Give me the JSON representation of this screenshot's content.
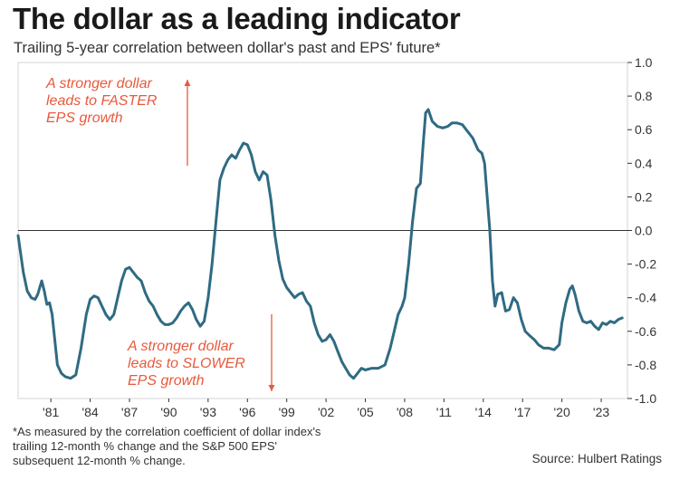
{
  "header": {
    "title": "The dollar as a leading indicator",
    "subtitle": "Trailing 5-year correlation between dollar's past and EPS' future*"
  },
  "footnote": {
    "text": "*As measured by the correlation coefficient of dollar index's trailing 12-month % change and the S&P 500 EPS' subsequent 12-month % change."
  },
  "source": {
    "text": "Source: Hulbert Ratings"
  },
  "colors": {
    "line": "#2f6b82",
    "annotation": "#e8593c",
    "axis": "#333333",
    "plot_border": "#d6d6d6"
  },
  "chart_data": {
    "type": "line",
    "title": "The dollar as a leading indicator",
    "subtitle": "Trailing 5-year correlation between dollar's past and EPS' future*",
    "xlabel": "",
    "ylabel": "",
    "xlim": [
      1978.5,
      2025.0
    ],
    "ylim": [
      -1.0,
      1.0
    ],
    "yticks": [
      1.0,
      0.8,
      0.6,
      0.4,
      0.2,
      0.0,
      -0.2,
      -0.4,
      -0.6,
      -0.8,
      -1.0
    ],
    "ytick_labels": [
      "1.0",
      "0.8",
      "0.6",
      "0.4",
      "0.2",
      "0.0",
      "-0.2",
      "-0.4",
      "-0.6",
      "-0.8",
      "-1.0"
    ],
    "xticks": [
      1981,
      1984,
      1987,
      1990,
      1993,
      1996,
      1999,
      2002,
      2005,
      2008,
      2011,
      2014,
      2017,
      2020,
      2023
    ],
    "xtick_labels": [
      "'81",
      "'84",
      "'87",
      "'90",
      "'93",
      "'96",
      "'99",
      "'02",
      "'05",
      "'08",
      "'11",
      "'14",
      "'17",
      "'20",
      "'23"
    ],
    "zero_line": true,
    "grid": false,
    "annotations": [
      {
        "lines": [
          "A stronger dollar",
          "leads to FASTER",
          "EPS growth"
        ],
        "arrow": "up"
      },
      {
        "lines": [
          "A stronger dollar",
          "leads to SLOWER",
          "EPS growth"
        ],
        "arrow": "down"
      }
    ],
    "series": [
      {
        "name": "Trailing 5-year correlation",
        "points": [
          [
            1978.5,
            -0.03
          ],
          [
            1978.9,
            -0.25
          ],
          [
            1979.2,
            -0.36
          ],
          [
            1979.5,
            -0.4
          ],
          [
            1979.8,
            -0.41
          ],
          [
            1980.0,
            -0.38
          ],
          [
            1980.3,
            -0.3
          ],
          [
            1980.5,
            -0.36
          ],
          [
            1980.7,
            -0.44
          ],
          [
            1980.9,
            -0.43
          ],
          [
            1981.1,
            -0.5
          ],
          [
            1981.3,
            -0.65
          ],
          [
            1981.5,
            -0.8
          ],
          [
            1981.8,
            -0.85
          ],
          [
            1982.1,
            -0.87
          ],
          [
            1982.5,
            -0.88
          ],
          [
            1982.9,
            -0.86
          ],
          [
            1983.3,
            -0.7
          ],
          [
            1983.7,
            -0.5
          ],
          [
            1984.0,
            -0.41
          ],
          [
            1984.3,
            -0.39
          ],
          [
            1984.6,
            -0.4
          ],
          [
            1984.9,
            -0.45
          ],
          [
            1985.2,
            -0.5
          ],
          [
            1985.5,
            -0.53
          ],
          [
            1985.8,
            -0.5
          ],
          [
            1986.1,
            -0.4
          ],
          [
            1986.4,
            -0.3
          ],
          [
            1986.7,
            -0.23
          ],
          [
            1987.0,
            -0.22
          ],
          [
            1987.3,
            -0.25
          ],
          [
            1987.6,
            -0.28
          ],
          [
            1987.9,
            -0.3
          ],
          [
            1988.2,
            -0.37
          ],
          [
            1988.5,
            -0.42
          ],
          [
            1988.8,
            -0.45
          ],
          [
            1989.1,
            -0.5
          ],
          [
            1989.4,
            -0.54
          ],
          [
            1989.7,
            -0.56
          ],
          [
            1990.0,
            -0.56
          ],
          [
            1990.3,
            -0.55
          ],
          [
            1990.6,
            -0.52
          ],
          [
            1990.9,
            -0.48
          ],
          [
            1991.2,
            -0.45
          ],
          [
            1991.5,
            -0.43
          ],
          [
            1991.8,
            -0.47
          ],
          [
            1992.1,
            -0.53
          ],
          [
            1992.4,
            -0.57
          ],
          [
            1992.7,
            -0.54
          ],
          [
            1993.0,
            -0.4
          ],
          [
            1993.3,
            -0.2
          ],
          [
            1993.6,
            0.05
          ],
          [
            1993.9,
            0.3
          ],
          [
            1994.2,
            0.37
          ],
          [
            1994.5,
            0.42
          ],
          [
            1994.8,
            0.45
          ],
          [
            1995.1,
            0.43
          ],
          [
            1995.4,
            0.48
          ],
          [
            1995.7,
            0.52
          ],
          [
            1996.0,
            0.51
          ],
          [
            1996.3,
            0.45
          ],
          [
            1996.6,
            0.35
          ],
          [
            1996.9,
            0.3
          ],
          [
            1997.2,
            0.35
          ],
          [
            1997.5,
            0.33
          ],
          [
            1997.8,
            0.18
          ],
          [
            1998.1,
            -0.03
          ],
          [
            1998.4,
            -0.18
          ],
          [
            1998.7,
            -0.29
          ],
          [
            1999.0,
            -0.34
          ],
          [
            1999.3,
            -0.37
          ],
          [
            1999.6,
            -0.4
          ],
          [
            1999.9,
            -0.38
          ],
          [
            2000.2,
            -0.37
          ],
          [
            2000.5,
            -0.42
          ],
          [
            2000.8,
            -0.45
          ],
          [
            2001.1,
            -0.55
          ],
          [
            2001.4,
            -0.62
          ],
          [
            2001.7,
            -0.66
          ],
          [
            2002.0,
            -0.65
          ],
          [
            2002.3,
            -0.62
          ],
          [
            2002.6,
            -0.66
          ],
          [
            2002.9,
            -0.72
          ],
          [
            2003.2,
            -0.78
          ],
          [
            2003.5,
            -0.82
          ],
          [
            2003.8,
            -0.86
          ],
          [
            2004.1,
            -0.88
          ],
          [
            2004.4,
            -0.85
          ],
          [
            2004.7,
            -0.82
          ],
          [
            2005.0,
            -0.83
          ],
          [
            2005.5,
            -0.82
          ],
          [
            2006.0,
            -0.82
          ],
          [
            2006.5,
            -0.8
          ],
          [
            2006.9,
            -0.7
          ],
          [
            2007.2,
            -0.6
          ],
          [
            2007.5,
            -0.5
          ],
          [
            2007.8,
            -0.45
          ],
          [
            2008.0,
            -0.4
          ],
          [
            2008.3,
            -0.2
          ],
          [
            2008.6,
            0.05
          ],
          [
            2008.9,
            0.25
          ],
          [
            2009.2,
            0.28
          ],
          [
            2009.4,
            0.5
          ],
          [
            2009.6,
            0.7
          ],
          [
            2009.8,
            0.72
          ],
          [
            2010.1,
            0.65
          ],
          [
            2010.5,
            0.62
          ],
          [
            2010.9,
            0.61
          ],
          [
            2011.3,
            0.62
          ],
          [
            2011.6,
            0.64
          ],
          [
            2012.0,
            0.64
          ],
          [
            2012.4,
            0.63
          ],
          [
            2012.8,
            0.59
          ],
          [
            2013.2,
            0.55
          ],
          [
            2013.6,
            0.48
          ],
          [
            2013.9,
            0.46
          ],
          [
            2014.1,
            0.4
          ],
          [
            2014.3,
            0.2
          ],
          [
            2014.5,
            0.0
          ],
          [
            2014.7,
            -0.3
          ],
          [
            2014.9,
            -0.45
          ],
          [
            2015.1,
            -0.38
          ],
          [
            2015.4,
            -0.37
          ],
          [
            2015.7,
            -0.48
          ],
          [
            2016.0,
            -0.47
          ],
          [
            2016.3,
            -0.4
          ],
          [
            2016.6,
            -0.43
          ],
          [
            2016.9,
            -0.53
          ],
          [
            2017.2,
            -0.6
          ],
          [
            2017.6,
            -0.63
          ],
          [
            2017.9,
            -0.65
          ],
          [
            2018.2,
            -0.68
          ],
          [
            2018.6,
            -0.7
          ],
          [
            2019.0,
            -0.7
          ],
          [
            2019.4,
            -0.71
          ],
          [
            2019.8,
            -0.68
          ],
          [
            2020.0,
            -0.55
          ],
          [
            2020.3,
            -0.43
          ],
          [
            2020.6,
            -0.35
          ],
          [
            2020.8,
            -0.33
          ],
          [
            2021.0,
            -0.38
          ],
          [
            2021.3,
            -0.48
          ],
          [
            2021.6,
            -0.54
          ],
          [
            2021.9,
            -0.55
          ],
          [
            2022.2,
            -0.54
          ],
          [
            2022.5,
            -0.57
          ],
          [
            2022.8,
            -0.59
          ],
          [
            2023.1,
            -0.55
          ],
          [
            2023.4,
            -0.56
          ],
          [
            2023.7,
            -0.54
          ],
          [
            2024.0,
            -0.55
          ],
          [
            2024.3,
            -0.53
          ],
          [
            2024.6,
            -0.52
          ]
        ]
      }
    ]
  }
}
